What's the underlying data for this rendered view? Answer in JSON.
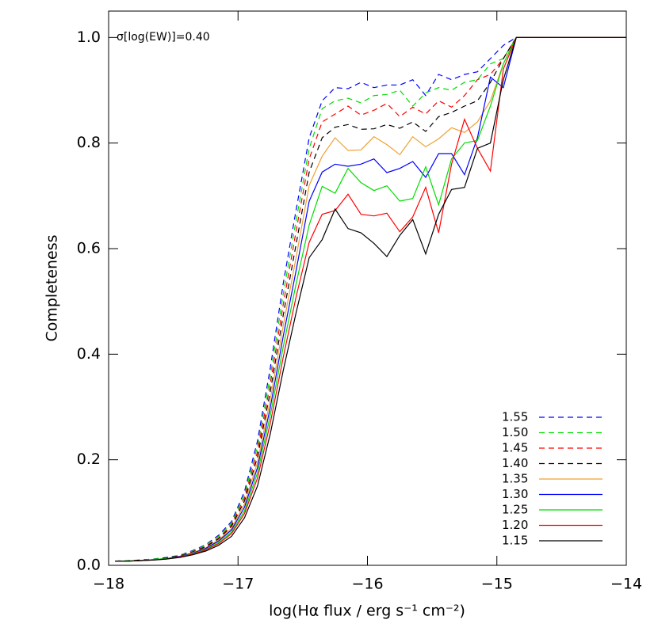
{
  "chart_data": {
    "type": "line",
    "annotation": "σ[log(EW)]=0.40",
    "xlabel": "log(Hα flux / erg s⁻¹ cm⁻²)",
    "ylabel": "Completeness",
    "xlim": [
      -18,
      -14
    ],
    "ylim": [
      0,
      1.05
    ],
    "xticks": [
      {
        "value": -18,
        "label": "−18"
      },
      {
        "value": -17,
        "label": "−17"
      },
      {
        "value": -16,
        "label": "−16"
      },
      {
        "value": -15,
        "label": "−15"
      },
      {
        "value": -14,
        "label": "−14"
      }
    ],
    "yticks": [
      {
        "value": 0,
        "label": "0.0"
      },
      0.2,
      0.4,
      0.6,
      0.8,
      {
        "value": 1,
        "label": "1.0"
      }
    ],
    "legend": "lower right",
    "x": [
      -17.95,
      -17.85,
      -17.75,
      -17.65,
      -17.55,
      -17.45,
      -17.35,
      -17.25,
      -17.15,
      -17.05,
      -16.95,
      -16.85,
      -16.75,
      -16.65,
      -16.55,
      -16.45,
      -16.35,
      -16.25,
      -16.15,
      -16.05,
      -15.95,
      -15.85,
      -15.75,
      -15.65,
      -15.55,
      -15.45,
      -15.35,
      -15.25,
      -15.15,
      -15.05,
      -14.95,
      -14.85,
      -14.0
    ],
    "series": [
      {
        "name": "1.55",
        "color": "#0000ff",
        "style": "dashed",
        "values": [
          0.008,
          0.009,
          0.01,
          0.012,
          0.015,
          0.019,
          0.028,
          0.039,
          0.057,
          0.083,
          0.14,
          0.235,
          0.375,
          0.535,
          0.675,
          0.81,
          0.88,
          0.905,
          0.903,
          0.915,
          0.905,
          0.91,
          0.91,
          0.92,
          0.89,
          0.93,
          0.92,
          0.93,
          0.935,
          0.96,
          0.985,
          1.0,
          1.0
        ]
      },
      {
        "name": "1.50",
        "color": "#00dd00",
        "style": "dashed",
        "values": [
          0.008,
          0.009,
          0.01,
          0.012,
          0.014,
          0.019,
          0.027,
          0.038,
          0.055,
          0.08,
          0.134,
          0.225,
          0.36,
          0.515,
          0.655,
          0.79,
          0.865,
          0.88,
          0.885,
          0.876,
          0.89,
          0.892,
          0.9,
          0.87,
          0.895,
          0.905,
          0.9,
          0.915,
          0.92,
          0.95,
          0.96,
          1.0,
          1.0
        ]
      },
      {
        "name": "1.45",
        "color": "#ff0000",
        "style": "dashed",
        "values": [
          0.008,
          0.008,
          0.01,
          0.011,
          0.014,
          0.018,
          0.026,
          0.036,
          0.052,
          0.077,
          0.128,
          0.215,
          0.345,
          0.495,
          0.635,
          0.77,
          0.84,
          0.855,
          0.87,
          0.853,
          0.862,
          0.875,
          0.85,
          0.868,
          0.855,
          0.88,
          0.868,
          0.89,
          0.92,
          0.93,
          0.96,
          1.0,
          1.0
        ]
      },
      {
        "name": "1.40",
        "color": "#000000",
        "style": "dashed",
        "values": [
          0.008,
          0.008,
          0.01,
          0.011,
          0.014,
          0.018,
          0.025,
          0.035,
          0.05,
          0.074,
          0.122,
          0.205,
          0.33,
          0.475,
          0.61,
          0.745,
          0.81,
          0.83,
          0.835,
          0.826,
          0.827,
          0.835,
          0.828,
          0.84,
          0.822,
          0.85,
          0.858,
          0.87,
          0.88,
          0.915,
          0.96,
          1.0,
          1.0
        ]
      },
      {
        "name": "1.35",
        "color": "#f0a030",
        "style": "solid",
        "values": [
          0.008,
          0.008,
          0.009,
          0.011,
          0.013,
          0.017,
          0.024,
          0.033,
          0.048,
          0.07,
          0.116,
          0.195,
          0.315,
          0.455,
          0.585,
          0.72,
          0.775,
          0.81,
          0.786,
          0.787,
          0.812,
          0.797,
          0.778,
          0.812,
          0.793,
          0.808,
          0.829,
          0.82,
          0.84,
          0.88,
          0.95,
          1.0,
          1.0
        ]
      },
      {
        "name": "1.30",
        "color": "#0000ff",
        "style": "solid",
        "values": [
          0.008,
          0.008,
          0.009,
          0.011,
          0.013,
          0.017,
          0.023,
          0.032,
          0.046,
          0.067,
          0.11,
          0.185,
          0.3,
          0.435,
          0.56,
          0.69,
          0.745,
          0.76,
          0.756,
          0.76,
          0.77,
          0.744,
          0.752,
          0.765,
          0.735,
          0.78,
          0.78,
          0.74,
          0.81,
          0.925,
          0.905,
          1.0,
          1.0
        ]
      },
      {
        "name": "1.25",
        "color": "#00dd00",
        "style": "solid",
        "values": [
          0.008,
          0.008,
          0.009,
          0.011,
          0.013,
          0.016,
          0.022,
          0.03,
          0.043,
          0.063,
          0.103,
          0.175,
          0.285,
          0.415,
          0.535,
          0.645,
          0.718,
          0.705,
          0.752,
          0.725,
          0.71,
          0.719,
          0.69,
          0.695,
          0.755,
          0.683,
          0.77,
          0.8,
          0.805,
          0.87,
          0.95,
          1.0,
          1.0
        ]
      },
      {
        "name": "1.20",
        "color": "#ff0000",
        "style": "solid",
        "values": [
          0.008,
          0.008,
          0.009,
          0.01,
          0.012,
          0.016,
          0.021,
          0.029,
          0.041,
          0.06,
          0.098,
          0.165,
          0.27,
          0.395,
          0.51,
          0.612,
          0.665,
          0.672,
          0.703,
          0.665,
          0.662,
          0.667,
          0.632,
          0.66,
          0.716,
          0.63,
          0.76,
          0.845,
          0.79,
          0.747,
          0.94,
          1.0,
          1.0
        ]
      },
      {
        "name": "1.15",
        "color": "#000000",
        "style": "solid",
        "values": [
          0.008,
          0.008,
          0.009,
          0.01,
          0.012,
          0.015,
          0.02,
          0.027,
          0.038,
          0.055,
          0.09,
          0.15,
          0.25,
          0.37,
          0.48,
          0.583,
          0.617,
          0.675,
          0.638,
          0.63,
          0.61,
          0.585,
          0.625,
          0.655,
          0.59,
          0.665,
          0.712,
          0.716,
          0.79,
          0.8,
          0.92,
          1.0,
          1.0
        ]
      }
    ]
  }
}
